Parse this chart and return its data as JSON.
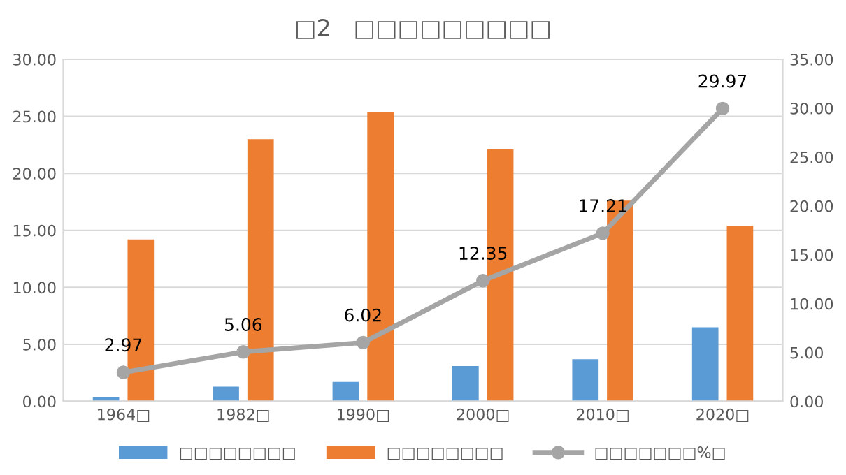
{
  "chart_data": {
    "type": "bar",
    "title": "□2   □□□□□□□□□",
    "categories": [
      "1964□",
      "1982□",
      "1990□",
      "2000□",
      "2010□",
      "2020□"
    ],
    "series": [
      {
        "name": "□□□□□□□□",
        "color": "#5b9bd5",
        "values": [
          0.4,
          1.3,
          1.7,
          3.1,
          3.7,
          6.5
        ]
      },
      {
        "name": "□□□□□□□□",
        "color": "#ed7d31",
        "values": [
          14.2,
          23.0,
          25.4,
          22.1,
          17.6,
          15.4
        ]
      },
      {
        "name": "□□□□□□□%□",
        "color": "#a5a5a5",
        "type": "line",
        "axis": "y2",
        "marker": "circle",
        "values": [
          2.97,
          5.06,
          6.02,
          12.35,
          17.21,
          29.97
        ],
        "value_labels": [
          "2.97",
          "5.06",
          "6.02",
          "12.35",
          "17.21",
          "29.97"
        ]
      }
    ],
    "ylim": [
      0,
      30
    ],
    "yticks": [
      {
        "value": 0,
        "label": "0.00"
      },
      {
        "value": 5,
        "label": "5.00"
      },
      {
        "value": 10,
        "label": "10.00"
      },
      {
        "value": 15,
        "label": "15.00"
      },
      {
        "value": 20,
        "label": "20.00"
      },
      {
        "value": 25,
        "label": "25.00"
      },
      {
        "value": 30,
        "label": "30.00"
      }
    ],
    "y2lim": [
      0,
      35
    ],
    "y2ticks": [
      {
        "value": 0,
        "label": "0.00"
      },
      {
        "value": 5,
        "label": "5.00"
      },
      {
        "value": 10,
        "label": "10.00"
      },
      {
        "value": 15,
        "label": "15.00"
      },
      {
        "value": 20,
        "label": "20.00"
      },
      {
        "value": 25,
        "label": "25.00"
      },
      {
        "value": 30,
        "label": "30.00"
      },
      {
        "value": 35,
        "label": "35.00"
      }
    ],
    "grid": "y",
    "legend": "bottom"
  }
}
